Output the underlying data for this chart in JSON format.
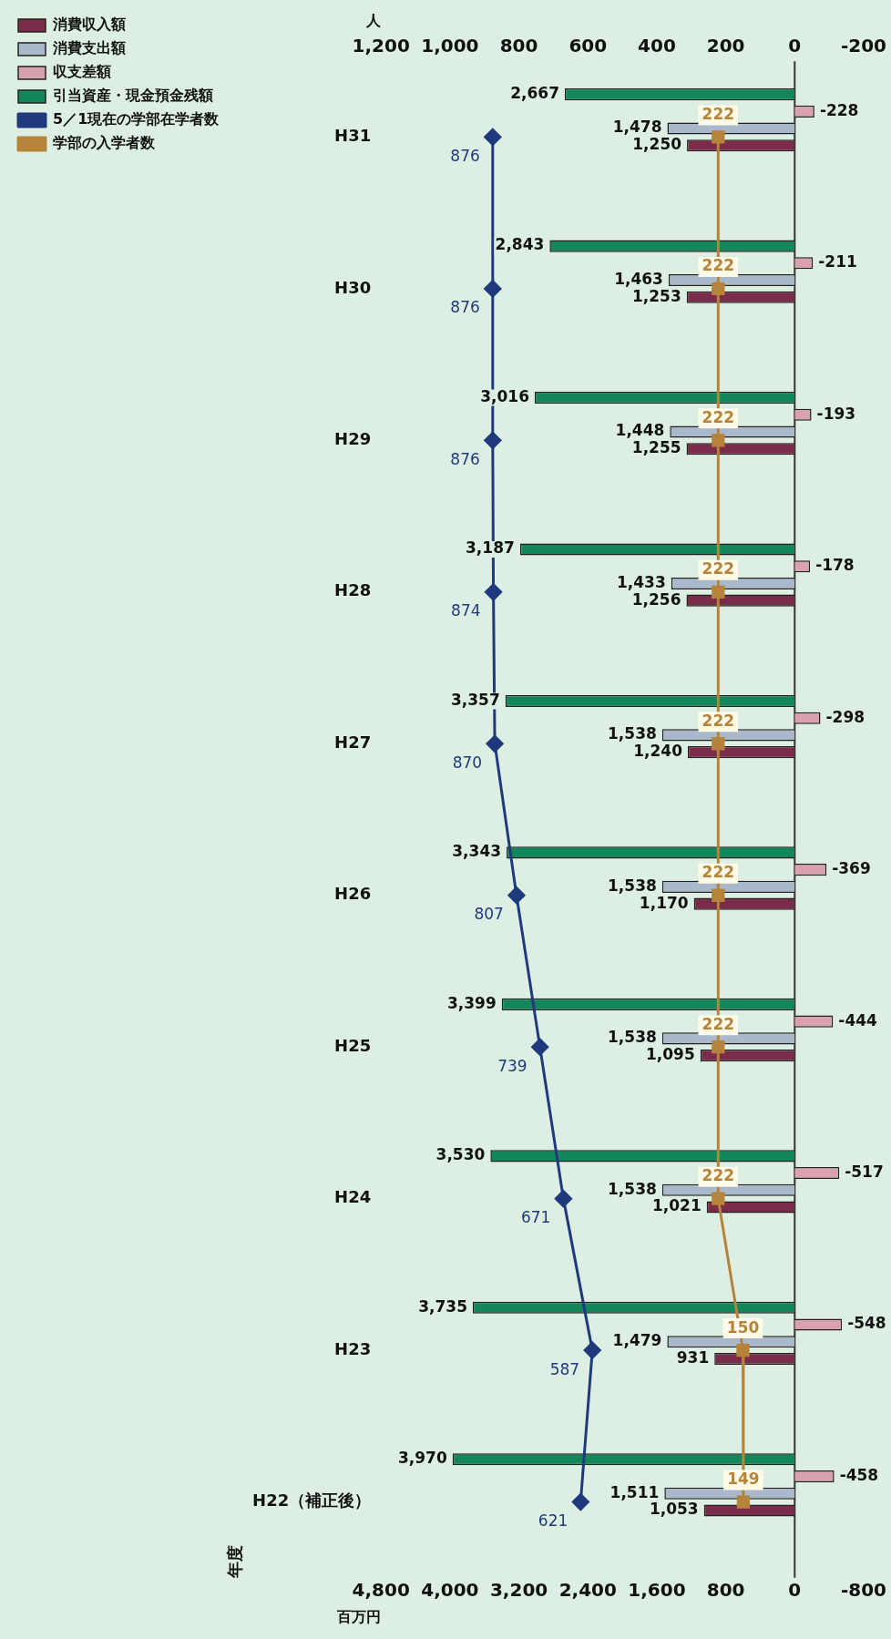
{
  "chart_data": {
    "type": "bar",
    "orientation": "horizontal",
    "xlabel": "百万円",
    "x2label": "人",
    "ylabel": "年度",
    "categories": [
      "H31",
      "H30",
      "H29",
      "H28",
      "H27",
      "H26",
      "H25",
      "H24",
      "H23",
      "H22（補正後）"
    ],
    "series": [
      {
        "name": "消費収入額",
        "color": "#7b2c4a",
        "values": [
          1250,
          1253,
          1255,
          1256,
          1240,
          1170,
          1095,
          1021,
          931,
          1053
        ],
        "value_labels": [
          "1,250",
          "1,253",
          "1,255",
          "1,256",
          "1,240",
          "1,170",
          "1,095",
          "1,021",
          "931",
          "1,053"
        ]
      },
      {
        "name": "消費支出額",
        "color": "#aab8cb",
        "values": [
          1478,
          1463,
          1448,
          1433,
          1538,
          1538,
          1538,
          1538,
          1479,
          1511
        ],
        "value_labels": [
          "1,478",
          "1,463",
          "1,448",
          "1,433",
          "1,538",
          "1,538",
          "1,538",
          "1,538",
          "1,479",
          "1,511"
        ]
      },
      {
        "name": "収支差額",
        "color": "#d9a2ae",
        "values": [
          -228,
          -211,
          -193,
          -178,
          -298,
          -369,
          -444,
          -517,
          -548,
          -458
        ],
        "value_labels": [
          "-228",
          "-211",
          "-193",
          "-178",
          "-298",
          "-369",
          "-444",
          "-517",
          "-548",
          "-458"
        ]
      },
      {
        "name": "引当資産・現金預金残額",
        "color": "#13875a",
        "values": [
          2667,
          2843,
          3016,
          3187,
          3357,
          3343,
          3399,
          3530,
          3735,
          3970
        ],
        "value_labels": [
          "2,667",
          "2,843",
          "3,016",
          "3,187",
          "3,357",
          "3,343",
          "3,399",
          "3,530",
          "3,735",
          "3,970"
        ]
      },
      {
        "name": "5／1現在の学部在学者数",
        "type": "line",
        "axis": "x2",
        "marker": "diamond",
        "color": "#1f3a7c",
        "values": [
          876,
          876,
          876,
          874,
          870,
          807,
          739,
          671,
          587,
          621
        ],
        "value_labels": [
          "876",
          "876",
          "876",
          "874",
          "870",
          "807",
          "739",
          "671",
          "587",
          "621"
        ]
      },
      {
        "name": "学部の入学者数",
        "type": "line",
        "axis": "x2",
        "marker": "square",
        "color": "#b5833a",
        "values": [
          222,
          222,
          222,
          222,
          222,
          222,
          222,
          222,
          150,
          149
        ],
        "value_labels": [
          "222",
          "222",
          "222",
          "222",
          "222",
          "222",
          "222",
          "222",
          "150",
          "149"
        ]
      }
    ],
    "xlim": [
      4800,
      -800
    ],
    "xticks": [
      {
        "value": 4800,
        "label": "4,800"
      },
      {
        "value": 4000,
        "label": "4,000"
      },
      {
        "value": 3200,
        "label": "3,200"
      },
      {
        "value": 2400,
        "label": "2,400"
      },
      {
        "value": 1600,
        "label": "1,600"
      },
      800,
      0,
      -800
    ],
    "x2lim": [
      1200,
      -200
    ],
    "x2ticks": [
      {
        "value": 1200,
        "label": "1,200"
      },
      {
        "value": 1000,
        "label": "1,000"
      },
      800,
      600,
      400,
      200,
      0,
      -200
    ],
    "ref_lines": [
      {
        "axis": "x",
        "value": 0,
        "color": "#333333"
      }
    ],
    "legend": "left",
    "grid": false
  }
}
